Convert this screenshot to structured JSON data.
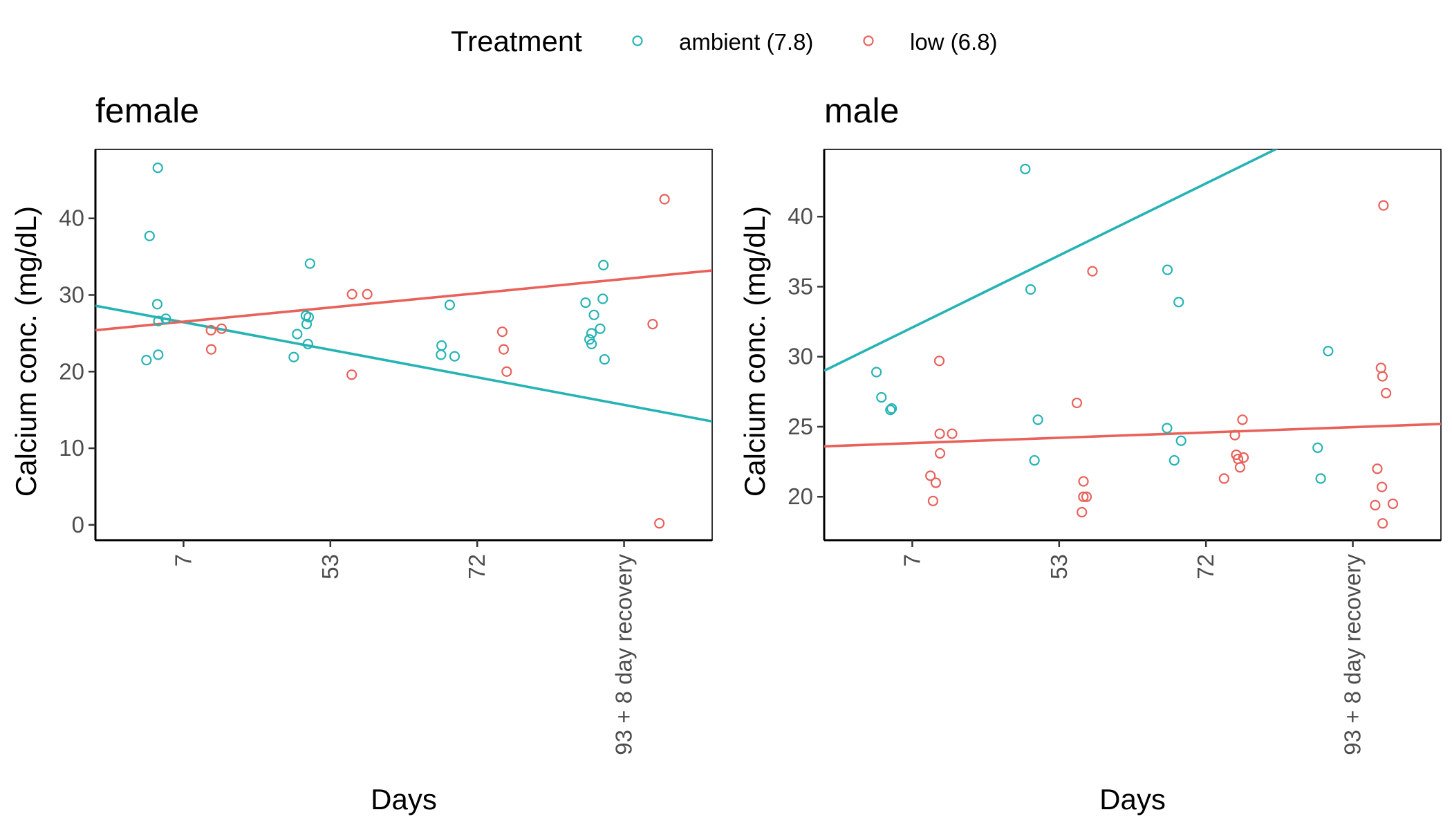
{
  "legend": {
    "title": "Treatment",
    "position": "top",
    "entries": [
      {
        "label": "ambient (7.8)",
        "color": "#26B3B4"
      },
      {
        "label": "low (6.8)",
        "color": "#E8615A"
      }
    ]
  },
  "chart_data": [
    {
      "type": "scatter",
      "title": "female",
      "xlabel": "Days",
      "ylabel": "Calcium conc. (mg/dL)",
      "categories": [
        "7",
        "53",
        "72",
        "93 + 8 day recovery"
      ],
      "yticks": [
        0,
        10,
        20,
        30,
        40
      ],
      "ylim": [
        -2,
        49
      ],
      "grid": false,
      "series": [
        {
          "name": "ambient (7.8)",
          "color": "#26B3B4",
          "points": [
            {
              "x": "7",
              "y": 46.6
            },
            {
              "x": "7",
              "y": 37.7
            },
            {
              "x": "7",
              "y": 28.8
            },
            {
              "x": "7",
              "y": 26.9
            },
            {
              "x": "7",
              "y": 26.6
            },
            {
              "x": "7",
              "y": 22.2
            },
            {
              "x": "7",
              "y": 21.5
            },
            {
              "x": "53",
              "y": 34.1
            },
            {
              "x": "53",
              "y": 27.3
            },
            {
              "x": "53",
              "y": 27.1
            },
            {
              "x": "53",
              "y": 26.2
            },
            {
              "x": "53",
              "y": 24.9
            },
            {
              "x": "53",
              "y": 23.6
            },
            {
              "x": "53",
              "y": 21.9
            },
            {
              "x": "72",
              "y": 28.7
            },
            {
              "x": "72",
              "y": 23.4
            },
            {
              "x": "72",
              "y": 22.2
            },
            {
              "x": "72",
              "y": 22.0
            },
            {
              "x": "93 + 8 day recovery",
              "y": 33.9
            },
            {
              "x": "93 + 8 day recovery",
              "y": 29.5
            },
            {
              "x": "93 + 8 day recovery",
              "y": 29.0
            },
            {
              "x": "93 + 8 day recovery",
              "y": 27.4
            },
            {
              "x": "93 + 8 day recovery",
              "y": 25.6
            },
            {
              "x": "93 + 8 day recovery",
              "y": 25.0
            },
            {
              "x": "93 + 8 day recovery",
              "y": 24.2
            },
            {
              "x": "93 + 8 day recovery",
              "y": 23.6
            },
            {
              "x": "93 + 8 day recovery",
              "y": 21.6
            }
          ],
          "trend": {
            "start": 28.6,
            "end": 13.5
          }
        },
        {
          "name": "low (6.8)",
          "color": "#E8615A",
          "points": [
            {
              "x": "7",
              "y": 25.6
            },
            {
              "x": "7",
              "y": 25.4
            },
            {
              "x": "7",
              "y": 22.9
            },
            {
              "x": "53",
              "y": 30.1
            },
            {
              "x": "53",
              "y": 30.1
            },
            {
              "x": "53",
              "y": 19.6
            },
            {
              "x": "72",
              "y": 25.2
            },
            {
              "x": "72",
              "y": 22.9
            },
            {
              "x": "72",
              "y": 20.0
            },
            {
              "x": "93 + 8 day recovery",
              "y": 42.5
            },
            {
              "x": "93 + 8 day recovery",
              "y": 26.2
            },
            {
              "x": "93 + 8 day recovery",
              "y": 0.2
            }
          ],
          "trend": {
            "start": 25.4,
            "end": 33.2
          }
        }
      ]
    },
    {
      "type": "scatter",
      "title": "male",
      "xlabel": "Days",
      "ylabel": "Calcium conc. (mg/dL)",
      "categories": [
        "7",
        "53",
        "72",
        "93 + 8 day recovery"
      ],
      "yticks": [
        20,
        25,
        30,
        35,
        40
      ],
      "ylim": [
        16.9,
        44.8
      ],
      "grid": false,
      "series": [
        {
          "name": "ambient (7.8)",
          "color": "#26B3B4",
          "points": [
            {
              "x": "7",
              "y": 28.9
            },
            {
              "x": "7",
              "y": 27.1
            },
            {
              "x": "7",
              "y": 26.3
            },
            {
              "x": "7",
              "y": 26.2
            },
            {
              "x": "53",
              "y": 43.4
            },
            {
              "x": "53",
              "y": 34.8
            },
            {
              "x": "53",
              "y": 25.5
            },
            {
              "x": "53",
              "y": 22.6
            },
            {
              "x": "72",
              "y": 36.2
            },
            {
              "x": "72",
              "y": 33.9
            },
            {
              "x": "72",
              "y": 24.9
            },
            {
              "x": "72",
              "y": 24.0
            },
            {
              "x": "72",
              "y": 22.6
            },
            {
              "x": "93 + 8 day recovery",
              "y": 30.4
            },
            {
              "x": "93 + 8 day recovery",
              "y": 23.5
            },
            {
              "x": "93 + 8 day recovery",
              "y": 21.3
            }
          ],
          "trend": {
            "start": 29.0,
            "end": 50.6
          }
        },
        {
          "name": "low (6.8)",
          "color": "#E8615A",
          "points": [
            {
              "x": "7",
              "y": 29.7
            },
            {
              "x": "7",
              "y": 24.5
            },
            {
              "x": "7",
              "y": 24.5
            },
            {
              "x": "7",
              "y": 23.1
            },
            {
              "x": "7",
              "y": 21.5
            },
            {
              "x": "7",
              "y": 21.0
            },
            {
              "x": "7",
              "y": 19.7
            },
            {
              "x": "53",
              "y": 36.1
            },
            {
              "x": "53",
              "y": 26.7
            },
            {
              "x": "53",
              "y": 21.1
            },
            {
              "x": "53",
              "y": 20.0
            },
            {
              "x": "53",
              "y": 20.0
            },
            {
              "x": "53",
              "y": 18.9
            },
            {
              "x": "72",
              "y": 25.5
            },
            {
              "x": "72",
              "y": 24.4
            },
            {
              "x": "72",
              "y": 23.0
            },
            {
              "x": "72",
              "y": 22.8
            },
            {
              "x": "72",
              "y": 22.7
            },
            {
              "x": "72",
              "y": 22.1
            },
            {
              "x": "72",
              "y": 21.3
            },
            {
              "x": "93 + 8 day recovery",
              "y": 40.8
            },
            {
              "x": "93 + 8 day recovery",
              "y": 29.2
            },
            {
              "x": "93 + 8 day recovery",
              "y": 28.6
            },
            {
              "x": "93 + 8 day recovery",
              "y": 27.4
            },
            {
              "x": "93 + 8 day recovery",
              "y": 22.0
            },
            {
              "x": "93 + 8 day recovery",
              "y": 20.7
            },
            {
              "x": "93 + 8 day recovery",
              "y": 19.5
            },
            {
              "x": "93 + 8 day recovery",
              "y": 19.4
            },
            {
              "x": "93 + 8 day recovery",
              "y": 18.1
            }
          ],
          "trend": {
            "start": 23.6,
            "end": 25.2
          }
        }
      ]
    }
  ]
}
